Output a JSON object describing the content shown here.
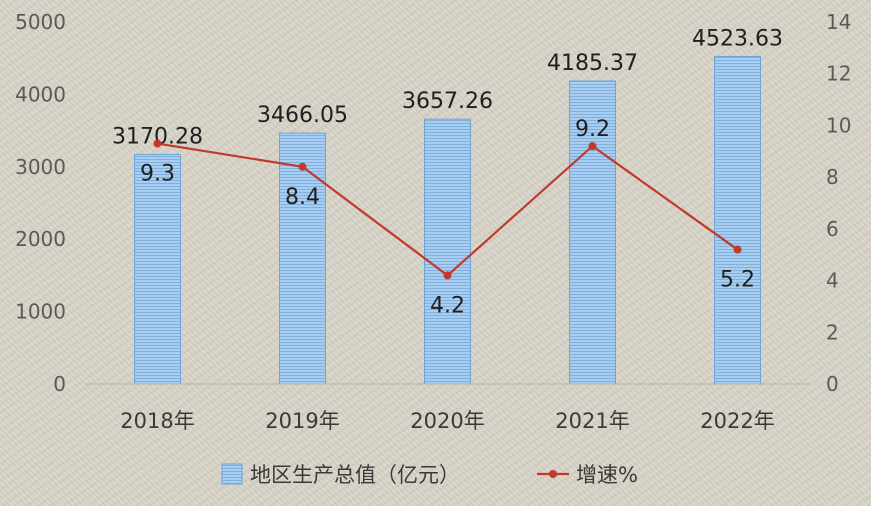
{
  "chart_data": {
    "type": "bar",
    "categories": [
      "2018年",
      "2019年",
      "2020年",
      "2021年",
      "2022年"
    ],
    "series": [
      {
        "name": "地区生产总值（亿元）",
        "type": "bar",
        "axis": "left",
        "values": [
          3170.28,
          3466.05,
          3657.26,
          4185.37,
          4523.63
        ],
        "labels": [
          "3170.28",
          "3466.05",
          "3657.26",
          "4185.37",
          "4523.63"
        ],
        "color": "#9dc3e6"
      },
      {
        "name": "增速%",
        "type": "line",
        "axis": "right",
        "values": [
          9.3,
          8.4,
          4.2,
          9.2,
          5.2
        ],
        "labels": [
          "9.3",
          "8.4",
          "4.2",
          "9.2",
          "5.2"
        ],
        "color": "#c0392b"
      }
    ],
    "y_left": {
      "ylim": [
        0,
        5000
      ],
      "ticks": [
        "0",
        "1000",
        "2000",
        "3000",
        "4000",
        "5000"
      ]
    },
    "y_right": {
      "ylim": [
        0,
        14
      ],
      "ticks": [
        "0",
        "2",
        "4",
        "6",
        "8",
        "10",
        "12",
        "14"
      ]
    },
    "grid": false,
    "legend": "bottom"
  }
}
